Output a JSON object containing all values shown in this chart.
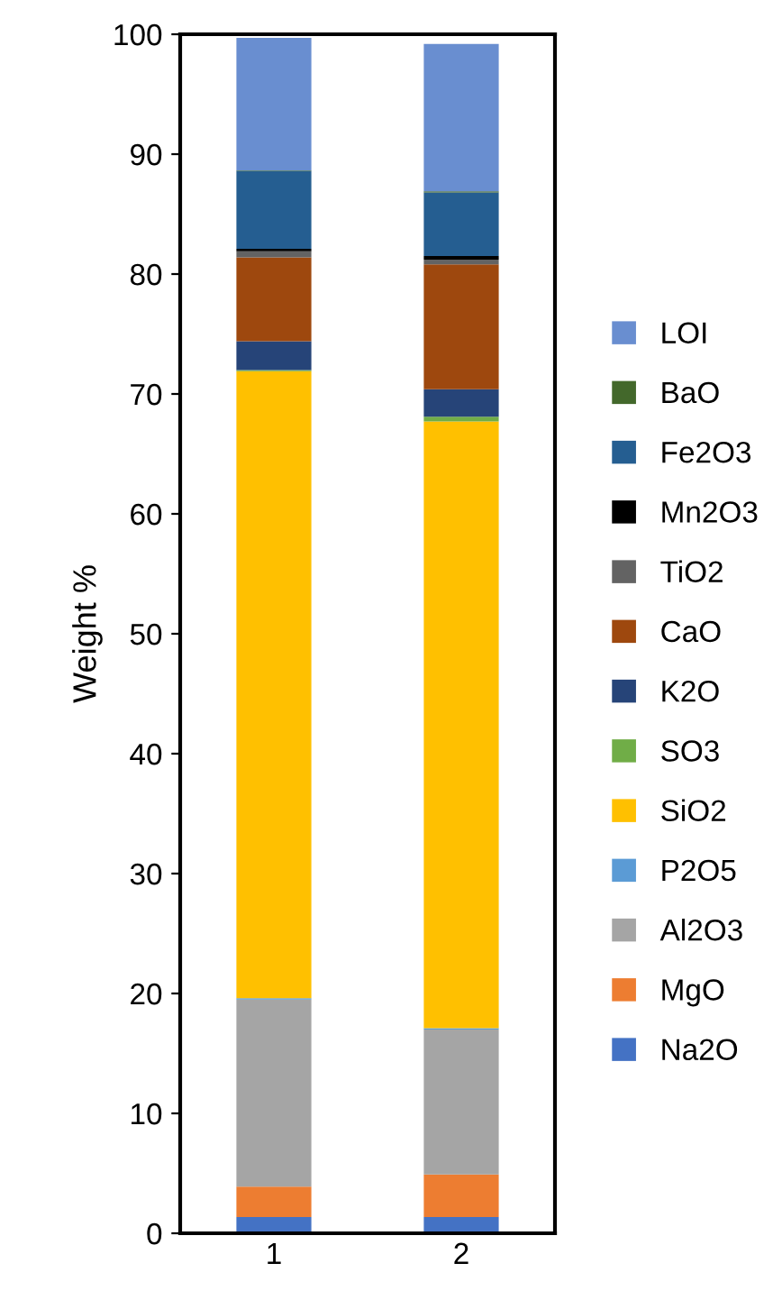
{
  "chart_data": {
    "type": "bar",
    "stacked": true,
    "ylabel": "Weight %",
    "categories": [
      "1",
      "2"
    ],
    "ylim": [
      0,
      100
    ],
    "yticks": [
      0,
      10,
      20,
      30,
      40,
      50,
      60,
      70,
      80,
      90,
      100
    ],
    "grid": false,
    "legend": "right",
    "series": [
      {
        "name": "Na2O",
        "color": "#4472c4",
        "values": [
          1.35,
          1.35
        ]
      },
      {
        "name": "MgO",
        "color": "#ed7d31",
        "values": [
          2.55,
          3.55
        ]
      },
      {
        "name": "Al2O3",
        "color": "#a5a5a5",
        "values": [
          15.6,
          12.1
        ]
      },
      {
        "name": "P2O5",
        "color": "#5b9bd5",
        "values": [
          0.1,
          0.1
        ]
      },
      {
        "name": "SiO2",
        "color": "#ffc000",
        "values": [
          52.3,
          50.6
        ]
      },
      {
        "name": "SO3",
        "color": "#70ad47",
        "values": [
          0.1,
          0.4
        ]
      },
      {
        "name": "K2O",
        "color": "#264478",
        "values": [
          2.4,
          2.3
        ]
      },
      {
        "name": "CaO",
        "color": "#9e480e",
        "values": [
          7.0,
          10.4
        ]
      },
      {
        "name": "TiO2",
        "color": "#636363",
        "values": [
          0.5,
          0.4
        ]
      },
      {
        "name": "Mn2O3",
        "color": "#000000",
        "values": [
          0.2,
          0.3
        ]
      },
      {
        "name": "Fe2O3",
        "color": "#255e91",
        "values": [
          6.5,
          5.3
        ]
      },
      {
        "name": "BaO",
        "color": "#43682b",
        "values": [
          0.05,
          0.1
        ]
      },
      {
        "name": "LOI",
        "color": "#698ed0",
        "values": [
          11.05,
          12.3
        ]
      }
    ]
  }
}
